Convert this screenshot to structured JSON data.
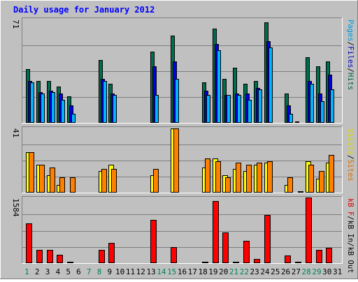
{
  "chart_data": {
    "type": "bar",
    "title": "Daily usage for January 2012",
    "x": [
      "1",
      "2",
      "3",
      "4",
      "5",
      "6",
      "7",
      "8",
      "9",
      "10",
      "11",
      "12",
      "13",
      "14",
      "15",
      "16",
      "17",
      "18",
      "19",
      "20",
      "21",
      "22",
      "23",
      "24",
      "25",
      "26",
      "27",
      "28",
      "29",
      "30",
      "31"
    ],
    "weekend_days": [
      "1",
      "7",
      "8",
      "14",
      "15",
      "21",
      "22",
      "28",
      "29"
    ],
    "panels": [
      {
        "id": "requests",
        "max_label": "71",
        "max_value": 71,
        "right_label": [
          "Pages",
          "/",
          "Files",
          "/",
          "Hits"
        ],
        "series": [
          {
            "name": "Hits",
            "color": "#006e4e",
            "values": [
              37,
              29,
              29,
              25,
              18,
              0,
              0,
              43,
              27,
              0,
              0,
              0,
              49,
              0,
              60,
              0,
              0,
              28,
              65,
              30,
              38,
              27,
              29,
              69,
              0,
              20,
              1,
              45,
              39,
              42,
              0
            ]
          },
          {
            "name": "Files",
            "color": "#0000e0",
            "values": [
              29,
              21,
              22,
              20,
              12,
              0,
              0,
              30,
              20,
              0,
              0,
              0,
              39,
              0,
              42,
              0,
              0,
              22,
              54,
              19,
              20,
              20,
              24,
              56,
              0,
              12,
              0,
              29,
              20,
              33,
              0
            ]
          },
          {
            "name": "Pages",
            "color": "#00b4ff",
            "values": [
              28,
              20,
              21,
              16,
              6,
              0,
              0,
              29,
              19,
              0,
              0,
              0,
              19,
              0,
              30,
              0,
              0,
              19,
              50,
              19,
              19,
              16,
              23,
              52,
              0,
              6,
              0,
              27,
              15,
              23,
              0
            ]
          }
        ]
      },
      {
        "id": "visits",
        "max_label": "41",
        "max_value": 41,
        "right_label": [
          "Visits",
          "/",
          "Sites"
        ],
        "series": [
          {
            "name": "Visits",
            "color": "#ffff00",
            "values": [
              26,
              18,
              11,
              5,
              0,
              0,
              0,
              14,
              18,
              0,
              0,
              0,
              11,
              0,
              41,
              0,
              0,
              16,
              22,
              11,
              15,
              14,
              18,
              19,
              0,
              5,
              0,
              20,
              9,
              19,
              0
            ]
          },
          {
            "name": "Sites",
            "color": "#ff8000",
            "values": [
              26,
              18,
              16,
              10,
              10,
              0,
              0,
              15,
              15,
              0,
              0,
              0,
              15,
              0,
              41,
              0,
              0,
              22,
              20,
              10,
              19,
              18,
              19,
              20,
              0,
              10,
              1,
              18,
              14,
              24,
              0
            ]
          }
        ]
      },
      {
        "id": "kbytes",
        "max_label": "1584",
        "max_value": 1584,
        "right_label": [
          "kB F",
          "/",
          "kB In",
          "/",
          "kB Out"
        ],
        "series": [
          {
            "name": "kB F",
            "color": "#ff0000",
            "values": [
              968,
              330,
              330,
              210,
              40,
              0,
              0,
              330,
              500,
              0,
              0,
              0,
              1060,
              0,
              400,
              0,
              0,
              40,
              1520,
              750,
              40,
              540,
              110,
              1180,
              0,
              180,
              10,
              1600,
              330,
              380,
              0
            ]
          }
        ]
      }
    ],
    "colors": {
      "background": "#c0c0c0",
      "title": "#0000ff",
      "weekday": "#000000",
      "weekend": "#00805c",
      "separator": "#000000"
    }
  }
}
